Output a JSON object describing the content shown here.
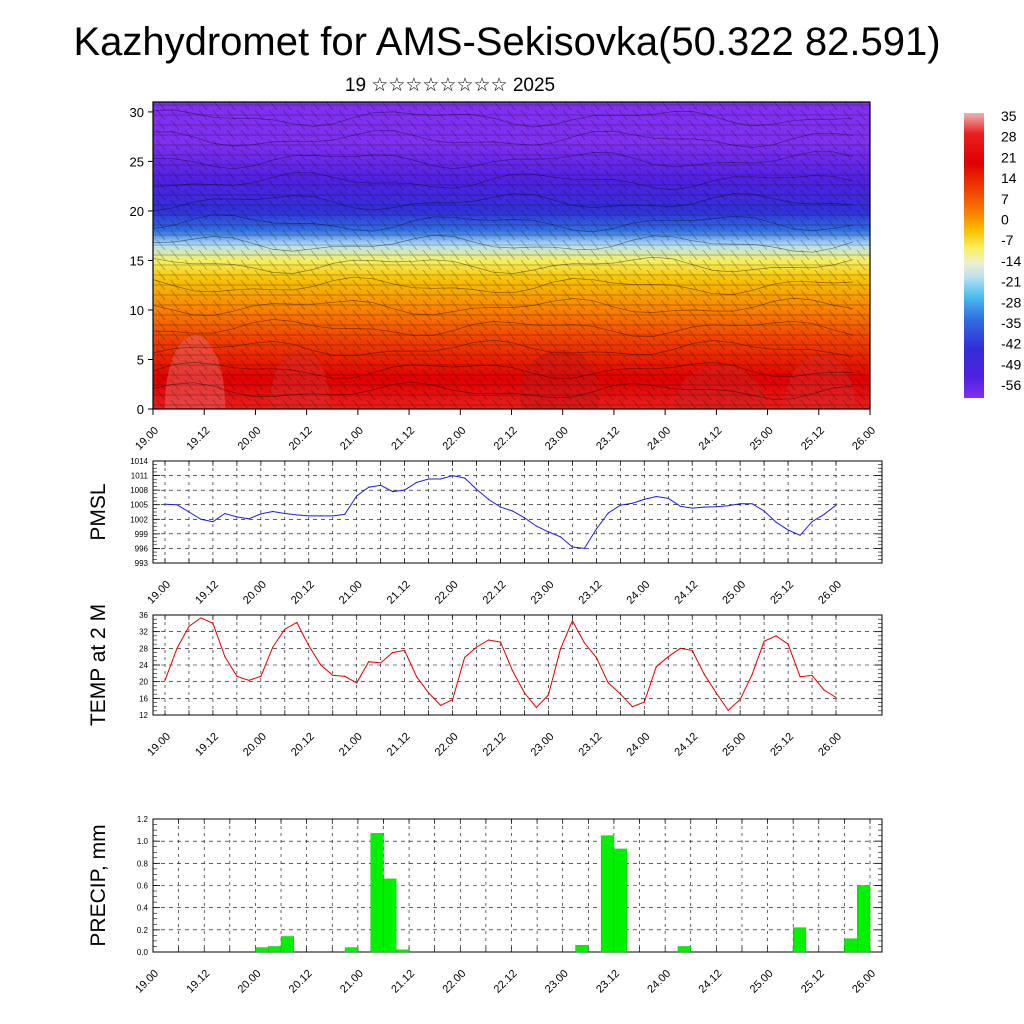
{
  "title": "Kazhydromet for AMS-Sekisovka(50.322 82.591)",
  "subtitle": "19 ☆☆☆☆☆☆☆☆ 2025",
  "time_axis_labels": [
    "19.00",
    "19.12",
    "20.00",
    "20.12",
    "21.00",
    "21.12",
    "22.00",
    "22.12",
    "23.00",
    "23.12",
    "24.00",
    "24.12",
    "25.00",
    "25.12",
    "26.00"
  ],
  "colors": {
    "pmsl_line": "#1f1fd6",
    "temp_line": "#e00000",
    "precip_bar": "#00f000"
  },
  "chart_data": [
    {
      "type": "heatmap",
      "name": "temperature-wind cross-section",
      "x_labels": [
        "19.00",
        "19.12",
        "20.00",
        "20.12",
        "21.00",
        "21.12",
        "22.00",
        "22.12",
        "23.00",
        "23.12",
        "24.00",
        "24.12",
        "25.00",
        "25.12",
        "26.00"
      ],
      "y_ticks": [
        0,
        5,
        10,
        15,
        20,
        25,
        30
      ],
      "ylim": [
        0,
        30
      ],
      "z_layers": [
        {
          "height": 0,
          "value": 30
        },
        {
          "height": 3,
          "value": 24
        },
        {
          "height": 7,
          "value": 12
        },
        {
          "height": 10,
          "value": 5
        },
        {
          "height": 13,
          "value": -4
        },
        {
          "height": 15,
          "value": -10
        },
        {
          "height": 16.5,
          "value": -18
        },
        {
          "height": 18,
          "value": -28
        },
        {
          "height": 20,
          "value": -42
        },
        {
          "height": 23,
          "value": -52
        },
        {
          "height": 27,
          "value": -57
        },
        {
          "height": 31,
          "value": -56
        }
      ],
      "colorbar_labels": [
        "35",
        "28",
        "21",
        "14",
        "7",
        "0",
        "-7",
        "-14",
        "-21",
        "-28",
        "-35",
        "-42",
        "-49",
        "-56"
      ],
      "colorbar_stops": [
        {
          "value": 38,
          "color": "#f0b0b0"
        },
        {
          "value": 31,
          "color": "#e82020"
        },
        {
          "value": 21,
          "color": "#e00000"
        },
        {
          "value": 12,
          "color": "#f04000"
        },
        {
          "value": 4,
          "color": "#f88000"
        },
        {
          "value": -2,
          "color": "#f8c000"
        },
        {
          "value": -8,
          "color": "#f8f060"
        },
        {
          "value": -13,
          "color": "#f0f0d0"
        },
        {
          "value": -18,
          "color": "#b8e0f0"
        },
        {
          "value": -24,
          "color": "#50c0f0"
        },
        {
          "value": -32,
          "color": "#3070e0"
        },
        {
          "value": -42,
          "color": "#3030d8"
        },
        {
          "value": -52,
          "color": "#5020e0"
        },
        {
          "value": -59,
          "color": "#8030f0"
        }
      ]
    },
    {
      "type": "line",
      "ylabel": "PMSL",
      "ylim": [
        993,
        1014
      ],
      "y_ticks": [
        993,
        996,
        999,
        1002,
        1005,
        1008,
        1011,
        1014
      ],
      "x_labels": [
        "19.00",
        "19.12",
        "20.00",
        "20.12",
        "21.00",
        "21.12",
        "22.00",
        "22.12",
        "23.00",
        "23.12",
        "24.00",
        "24.12",
        "25.00",
        "25.12",
        "26.00"
      ],
      "x": [
        0,
        3,
        6,
        9,
        12,
        15,
        18,
        21,
        24,
        27,
        30,
        33,
        36,
        39,
        42,
        45,
        48,
        51,
        54,
        57,
        60,
        63,
        66,
        69,
        72,
        75,
        78,
        81,
        84,
        87,
        90,
        93,
        96,
        99,
        102,
        105,
        108,
        111,
        114,
        117,
        120,
        123,
        126,
        129,
        132,
        135,
        138,
        141,
        144,
        147,
        150,
        153,
        156,
        159,
        162,
        165,
        168
      ],
      "values": [
        1005.1,
        1005,
        1003.5,
        1002,
        1001.5,
        1003.2,
        1002.5,
        1002.1,
        1003.1,
        1003.6,
        1003.2,
        1002.9,
        1002.7,
        1002.7,
        1002.7,
        1003,
        1006.8,
        1008.6,
        1009,
        1007.7,
        1008,
        1009.6,
        1010.3,
        1010.3,
        1011,
        1010.5,
        1008.2,
        1006.1,
        1004.5,
        1003.7,
        1002.3,
        1000.6,
        999.4,
        998.4,
        996.3,
        996,
        1000,
        1003.3,
        1004.9,
        1005.3,
        1006.1,
        1006.7,
        1006.3,
        1004.7,
        1004.3,
        1004.5,
        1004.6,
        1004.8,
        1005.2,
        1005.2,
        1003.7,
        1001.4,
        999.8,
        998.7,
        1001.5,
        1003,
        1004.9
      ]
    },
    {
      "type": "line",
      "ylabel": "TEMP at 2 M",
      "ylim": [
        12,
        36
      ],
      "y_ticks": [
        12,
        16,
        20,
        24,
        28,
        32,
        36
      ],
      "x_labels": [
        "19.00",
        "19.12",
        "20.00",
        "20.12",
        "21.00",
        "21.12",
        "22.00",
        "22.12",
        "23.00",
        "23.12",
        "24.00",
        "24.12",
        "25.00",
        "25.12",
        "26.00"
      ],
      "x": [
        0,
        3,
        6,
        9,
        12,
        15,
        18,
        21,
        24,
        27,
        30,
        33,
        36,
        39,
        42,
        45,
        48,
        51,
        54,
        57,
        60,
        63,
        66,
        69,
        72,
        75,
        78,
        81,
        84,
        87,
        90,
        93,
        96,
        99,
        102,
        105,
        108,
        111,
        114,
        117,
        120,
        123,
        126,
        129,
        132,
        135,
        138,
        141,
        144,
        147,
        150,
        153,
        156,
        159,
        162,
        165,
        168
      ],
      "values": [
        20.3,
        28,
        33.3,
        35.3,
        34,
        26,
        21.3,
        20.3,
        21.3,
        28.3,
        32.6,
        34.2,
        28.6,
        24,
        21.5,
        21.3,
        19.7,
        24.8,
        24.5,
        27,
        27.5,
        21.2,
        17.3,
        14.3,
        15.7,
        25.8,
        28.3,
        30,
        29.5,
        22.6,
        17.3,
        13.8,
        16.8,
        27.8,
        34.6,
        29.3,
        25.8,
        19.7,
        17.1,
        14,
        15.1,
        23.6,
        26,
        28,
        27.5,
        21.8,
        17.3,
        13.1,
        15.7,
        21.7,
        29.7,
        31,
        29,
        21.2,
        21.5,
        18,
        16.2
      ]
    },
    {
      "type": "bar",
      "ylabel": "PRECIP, mm",
      "ylim": [
        0,
        1.2
      ],
      "y_ticks": [
        "0.0",
        "0.2",
        "0.4",
        "0.6",
        "0.8",
        "1.0",
        "1.2"
      ],
      "x_labels": [
        "19.00",
        "19.12",
        "20.00",
        "20.12",
        "21.00",
        "21.12",
        "22.00",
        "22.12",
        "23.00",
        "23.12",
        "24.00",
        "24.12",
        "25.00",
        "25.12",
        "26.00"
      ],
      "bars": [
        {
          "start": 24,
          "end": 27,
          "value": 0.04
        },
        {
          "start": 27,
          "end": 30,
          "value": 0.05
        },
        {
          "start": 30,
          "end": 33,
          "value": 0.14
        },
        {
          "start": 45,
          "end": 48,
          "value": 0.04
        },
        {
          "start": 51,
          "end": 54,
          "value": 1.07
        },
        {
          "start": 54,
          "end": 57,
          "value": 0.66
        },
        {
          "start": 57,
          "end": 60,
          "value": 0.02
        },
        {
          "start": 99,
          "end": 102,
          "value": 0.06
        },
        {
          "start": 105,
          "end": 108,
          "value": 1.05
        },
        {
          "start": 108,
          "end": 111,
          "value": 0.93
        },
        {
          "start": 123,
          "end": 126,
          "value": 0.05
        },
        {
          "start": 150,
          "end": 153,
          "value": 0.22
        },
        {
          "start": 162,
          "end": 165,
          "value": 0.12
        },
        {
          "start": 165,
          "end": 168,
          "value": 0.6
        }
      ]
    }
  ]
}
